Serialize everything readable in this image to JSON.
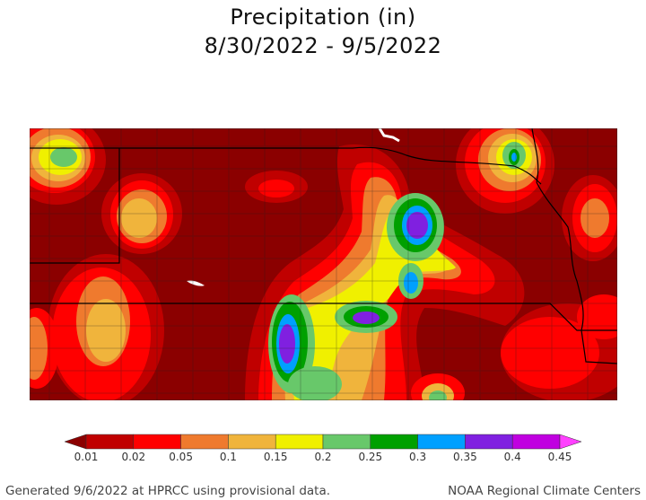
{
  "title": {
    "line1": "Precipitation (in)",
    "line2": "8/30/2022 - 9/5/2022"
  },
  "legend": {
    "labels": [
      "0.01",
      "0.02",
      "0.05",
      "0.1",
      "0.15",
      "0.2",
      "0.25",
      "0.3",
      "0.35",
      "0.4",
      "0.45"
    ],
    "colors": [
      "#8b0000",
      "#c00000",
      "#ff0000",
      "#ef7a2e",
      "#f0b43c",
      "#f0f000",
      "#68c86a",
      "#00a000",
      "#00a0ff",
      "#8020e0",
      "#c000e0",
      "#ff40ff"
    ]
  },
  "map": {
    "background_color": "#8b0000",
    "region": "Nebraska and surrounding area"
  },
  "footer": {
    "left": "Generated 9/6/2022 at HPRCC using provisional data.",
    "right": "NOAA Regional Climate Centers"
  }
}
